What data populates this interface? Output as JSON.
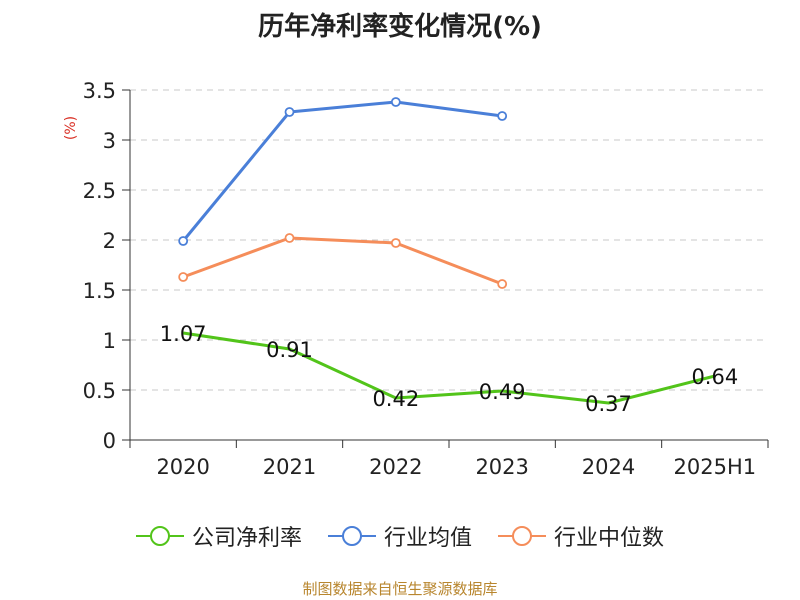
{
  "chart_data": {
    "type": "line",
    "title": "历年净利率变化情况(%)",
    "ylabel": "(%)",
    "categories": [
      "2020",
      "2021",
      "2022",
      "2023",
      "2024",
      "2025H1"
    ],
    "ylim": [
      0,
      3.5
    ],
    "yticks": [
      "0",
      "0.5",
      "1",
      "1.5",
      "2",
      "2.5",
      "3",
      "3.5"
    ],
    "grid": true,
    "legend_position": "bottom",
    "series": [
      {
        "name": "公司净利率",
        "color": "#52c41a",
        "values": [
          1.07,
          0.91,
          0.42,
          0.49,
          0.37,
          0.64
        ],
        "labels": [
          "1.07",
          "0.91",
          "0.42",
          "0.49",
          "0.37",
          "0.64"
        ],
        "show_markers": false
      },
      {
        "name": "行业均值",
        "color": "#4a7fd8",
        "values": [
          1.99,
          3.28,
          3.38,
          3.24,
          null,
          null
        ],
        "show_markers": true
      },
      {
        "name": "行业中位数",
        "color": "#f58d5a",
        "values": [
          1.63,
          2.02,
          1.97,
          1.56,
          null,
          null
        ],
        "show_markers": true
      }
    ]
  },
  "source": "制图数据来自恒生聚源数据库"
}
